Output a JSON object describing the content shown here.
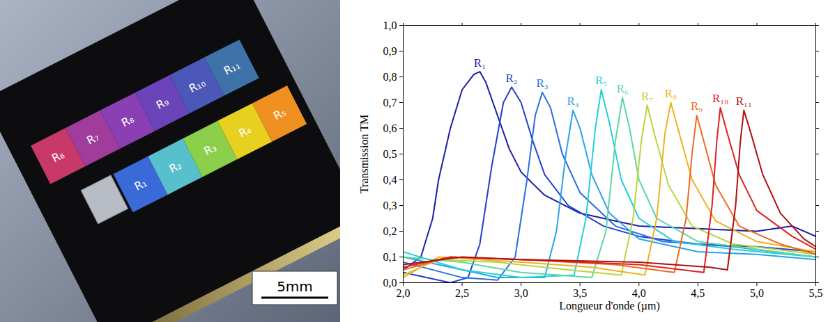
{
  "chart_data": {
    "type": "line",
    "x_label": "Longueur d'onde (µm)",
    "y_label": "Transmission TM",
    "xlim": [
      2.0,
      5.5
    ],
    "xticks": [
      {
        "value": 2.0,
        "label": "2,0"
      },
      {
        "value": 2.5,
        "label": "2,5"
      },
      {
        "value": 3.0,
        "label": "3,0"
      },
      {
        "value": 3.5,
        "label": "3,5"
      },
      {
        "value": 4.0,
        "label": "4,0"
      },
      {
        "value": 4.5,
        "label": "4,5"
      },
      {
        "value": 5.0,
        "label": "5,0"
      },
      {
        "value": 5.5,
        "label": "5,5"
      }
    ],
    "ylim": [
      0.0,
      1.0
    ],
    "yticks": [
      {
        "value": 0.0,
        "label": "0,0"
      },
      {
        "value": 0.1,
        "label": "0,1"
      },
      {
        "value": 0.2,
        "label": "0,2"
      },
      {
        "value": 0.3,
        "label": "0,3"
      },
      {
        "value": 0.4,
        "label": "0,4"
      },
      {
        "value": 0.5,
        "label": "0,5"
      },
      {
        "value": 0.6,
        "label": "0,6"
      },
      {
        "value": 0.7,
        "label": "0,7"
      },
      {
        "value": 0.8,
        "label": "0,8"
      },
      {
        "value": 0.9,
        "label": "0,9"
      },
      {
        "value": 1.0,
        "label": "1,0"
      }
    ],
    "grid": false,
    "series": [
      {
        "name": "R₁",
        "color": "#1c1ca8",
        "x": [
          2.0,
          2.15,
          2.25,
          2.3,
          2.4,
          2.5,
          2.6,
          2.65,
          2.7,
          2.8,
          2.9,
          3.0,
          3.2,
          3.5,
          3.8,
          4.0,
          4.5,
          5.0,
          5.3,
          5.5
        ],
        "values": [
          0.05,
          0.1,
          0.25,
          0.4,
          0.6,
          0.75,
          0.81,
          0.82,
          0.78,
          0.65,
          0.52,
          0.43,
          0.34,
          0.27,
          0.24,
          0.22,
          0.21,
          0.2,
          0.22,
          0.18
        ]
      },
      {
        "name": "R₂",
        "color": "#1f40d2",
        "x": [
          2.0,
          2.4,
          2.55,
          2.65,
          2.75,
          2.85,
          2.92,
          3.0,
          3.1,
          3.2,
          3.4,
          3.7,
          4.0,
          4.5,
          5.0,
          5.5
        ],
        "values": [
          0.04,
          0.0,
          0.02,
          0.15,
          0.45,
          0.7,
          0.76,
          0.7,
          0.55,
          0.42,
          0.3,
          0.22,
          0.18,
          0.15,
          0.14,
          0.12
        ]
      },
      {
        "name": "R₃",
        "color": "#2a6ee0",
        "x": [
          2.0,
          2.5,
          2.8,
          2.95,
          3.05,
          3.12,
          3.18,
          3.25,
          3.35,
          3.5,
          3.8,
          4.2,
          4.8,
          5.5
        ],
        "values": [
          0.08,
          0.02,
          0.01,
          0.1,
          0.4,
          0.65,
          0.74,
          0.68,
          0.5,
          0.35,
          0.22,
          0.16,
          0.14,
          0.1
        ]
      },
      {
        "name": "R₄",
        "color": "#2aa2ea",
        "x": [
          2.0,
          2.8,
          3.2,
          3.3,
          3.38,
          3.44,
          3.5,
          3.6,
          3.75,
          4.0,
          4.5,
          5.0,
          5.5
        ],
        "values": [
          0.1,
          0.02,
          0.02,
          0.2,
          0.5,
          0.67,
          0.6,
          0.42,
          0.27,
          0.17,
          0.12,
          0.11,
          0.09
        ]
      },
      {
        "name": "R₅",
        "color": "#22d0dc",
        "x": [
          2.0,
          2.5,
          3.0,
          3.45,
          3.55,
          3.63,
          3.68,
          3.75,
          3.85,
          4.0,
          4.3,
          4.8,
          5.5
        ],
        "values": [
          0.12,
          0.05,
          0.02,
          0.03,
          0.25,
          0.6,
          0.75,
          0.62,
          0.4,
          0.25,
          0.16,
          0.13,
          0.1
        ]
      },
      {
        "name": "R₆",
        "color": "#5cd8a0",
        "x": [
          2.0,
          2.5,
          3.0,
          3.6,
          3.72,
          3.8,
          3.86,
          3.92,
          4.0,
          4.15,
          4.5,
          5.0,
          5.5
        ],
        "values": [
          0.1,
          0.08,
          0.04,
          0.02,
          0.2,
          0.55,
          0.72,
          0.6,
          0.4,
          0.25,
          0.16,
          0.13,
          0.1
        ]
      },
      {
        "name": "R₇",
        "color": "#b4d83c",
        "x": [
          2.0,
          2.3,
          2.8,
          3.4,
          3.85,
          3.95,
          4.02,
          4.07,
          4.13,
          4.25,
          4.45,
          4.8,
          5.5
        ],
        "values": [
          0.03,
          0.09,
          0.08,
          0.05,
          0.03,
          0.25,
          0.55,
          0.69,
          0.58,
          0.38,
          0.22,
          0.15,
          0.11
        ]
      },
      {
        "name": "R₈",
        "color": "#f0b020",
        "x": [
          2.0,
          2.3,
          3.0,
          3.6,
          4.05,
          4.15,
          4.22,
          4.27,
          4.33,
          4.45,
          4.65,
          5.0,
          5.5
        ],
        "values": [
          0.02,
          0.1,
          0.08,
          0.06,
          0.03,
          0.25,
          0.58,
          0.7,
          0.6,
          0.4,
          0.24,
          0.16,
          0.12
        ]
      },
      {
        "name": "R₉",
        "color": "#f06a20",
        "x": [
          2.0,
          2.4,
          3.0,
          3.8,
          4.3,
          4.4,
          4.45,
          4.49,
          4.55,
          4.65,
          4.85,
          5.2,
          5.5
        ],
        "values": [
          0.05,
          0.1,
          0.09,
          0.07,
          0.04,
          0.25,
          0.5,
          0.65,
          0.55,
          0.38,
          0.22,
          0.15,
          0.11
        ]
      },
      {
        "name": "R₁₀",
        "color": "#e02020",
        "x": [
          2.0,
          2.4,
          3.0,
          4.0,
          4.55,
          4.62,
          4.66,
          4.69,
          4.75,
          4.85,
          5.0,
          5.3,
          5.5
        ],
        "values": [
          0.06,
          0.1,
          0.09,
          0.07,
          0.04,
          0.3,
          0.55,
          0.68,
          0.58,
          0.42,
          0.28,
          0.18,
          0.13
        ]
      },
      {
        "name": "R₁₁",
        "color": "#b01010",
        "x": [
          2.0,
          2.5,
          3.0,
          4.0,
          4.6,
          4.75,
          4.82,
          4.86,
          4.89,
          4.95,
          5.05,
          5.2,
          5.4,
          5.5
        ],
        "values": [
          0.07,
          0.1,
          0.09,
          0.08,
          0.06,
          0.05,
          0.3,
          0.55,
          0.67,
          0.58,
          0.42,
          0.27,
          0.17,
          0.14
        ]
      }
    ]
  },
  "photo": {
    "scale_bar": "5mm"
  }
}
